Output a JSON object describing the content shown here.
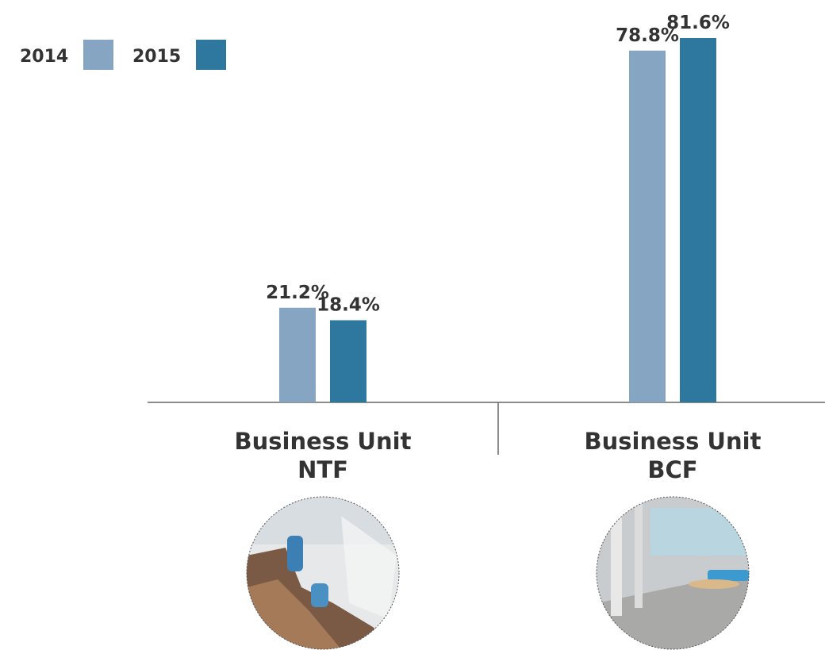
{
  "chart_data": {
    "type": "bar",
    "categories": [
      "Business Unit NTF",
      "Business Unit BCF"
    ],
    "series": [
      {
        "name": "2014",
        "color": "#86a5c3",
        "values": [
          21.2,
          78.8
        ],
        "value_labels": [
          "21.2%",
          "78.8%"
        ]
      },
      {
        "name": "2015",
        "color": "#2e78a0",
        "values": [
          18.4,
          81.6
        ],
        "value_labels": [
          "18.4%",
          "81.6%"
        ]
      }
    ]
  }
}
